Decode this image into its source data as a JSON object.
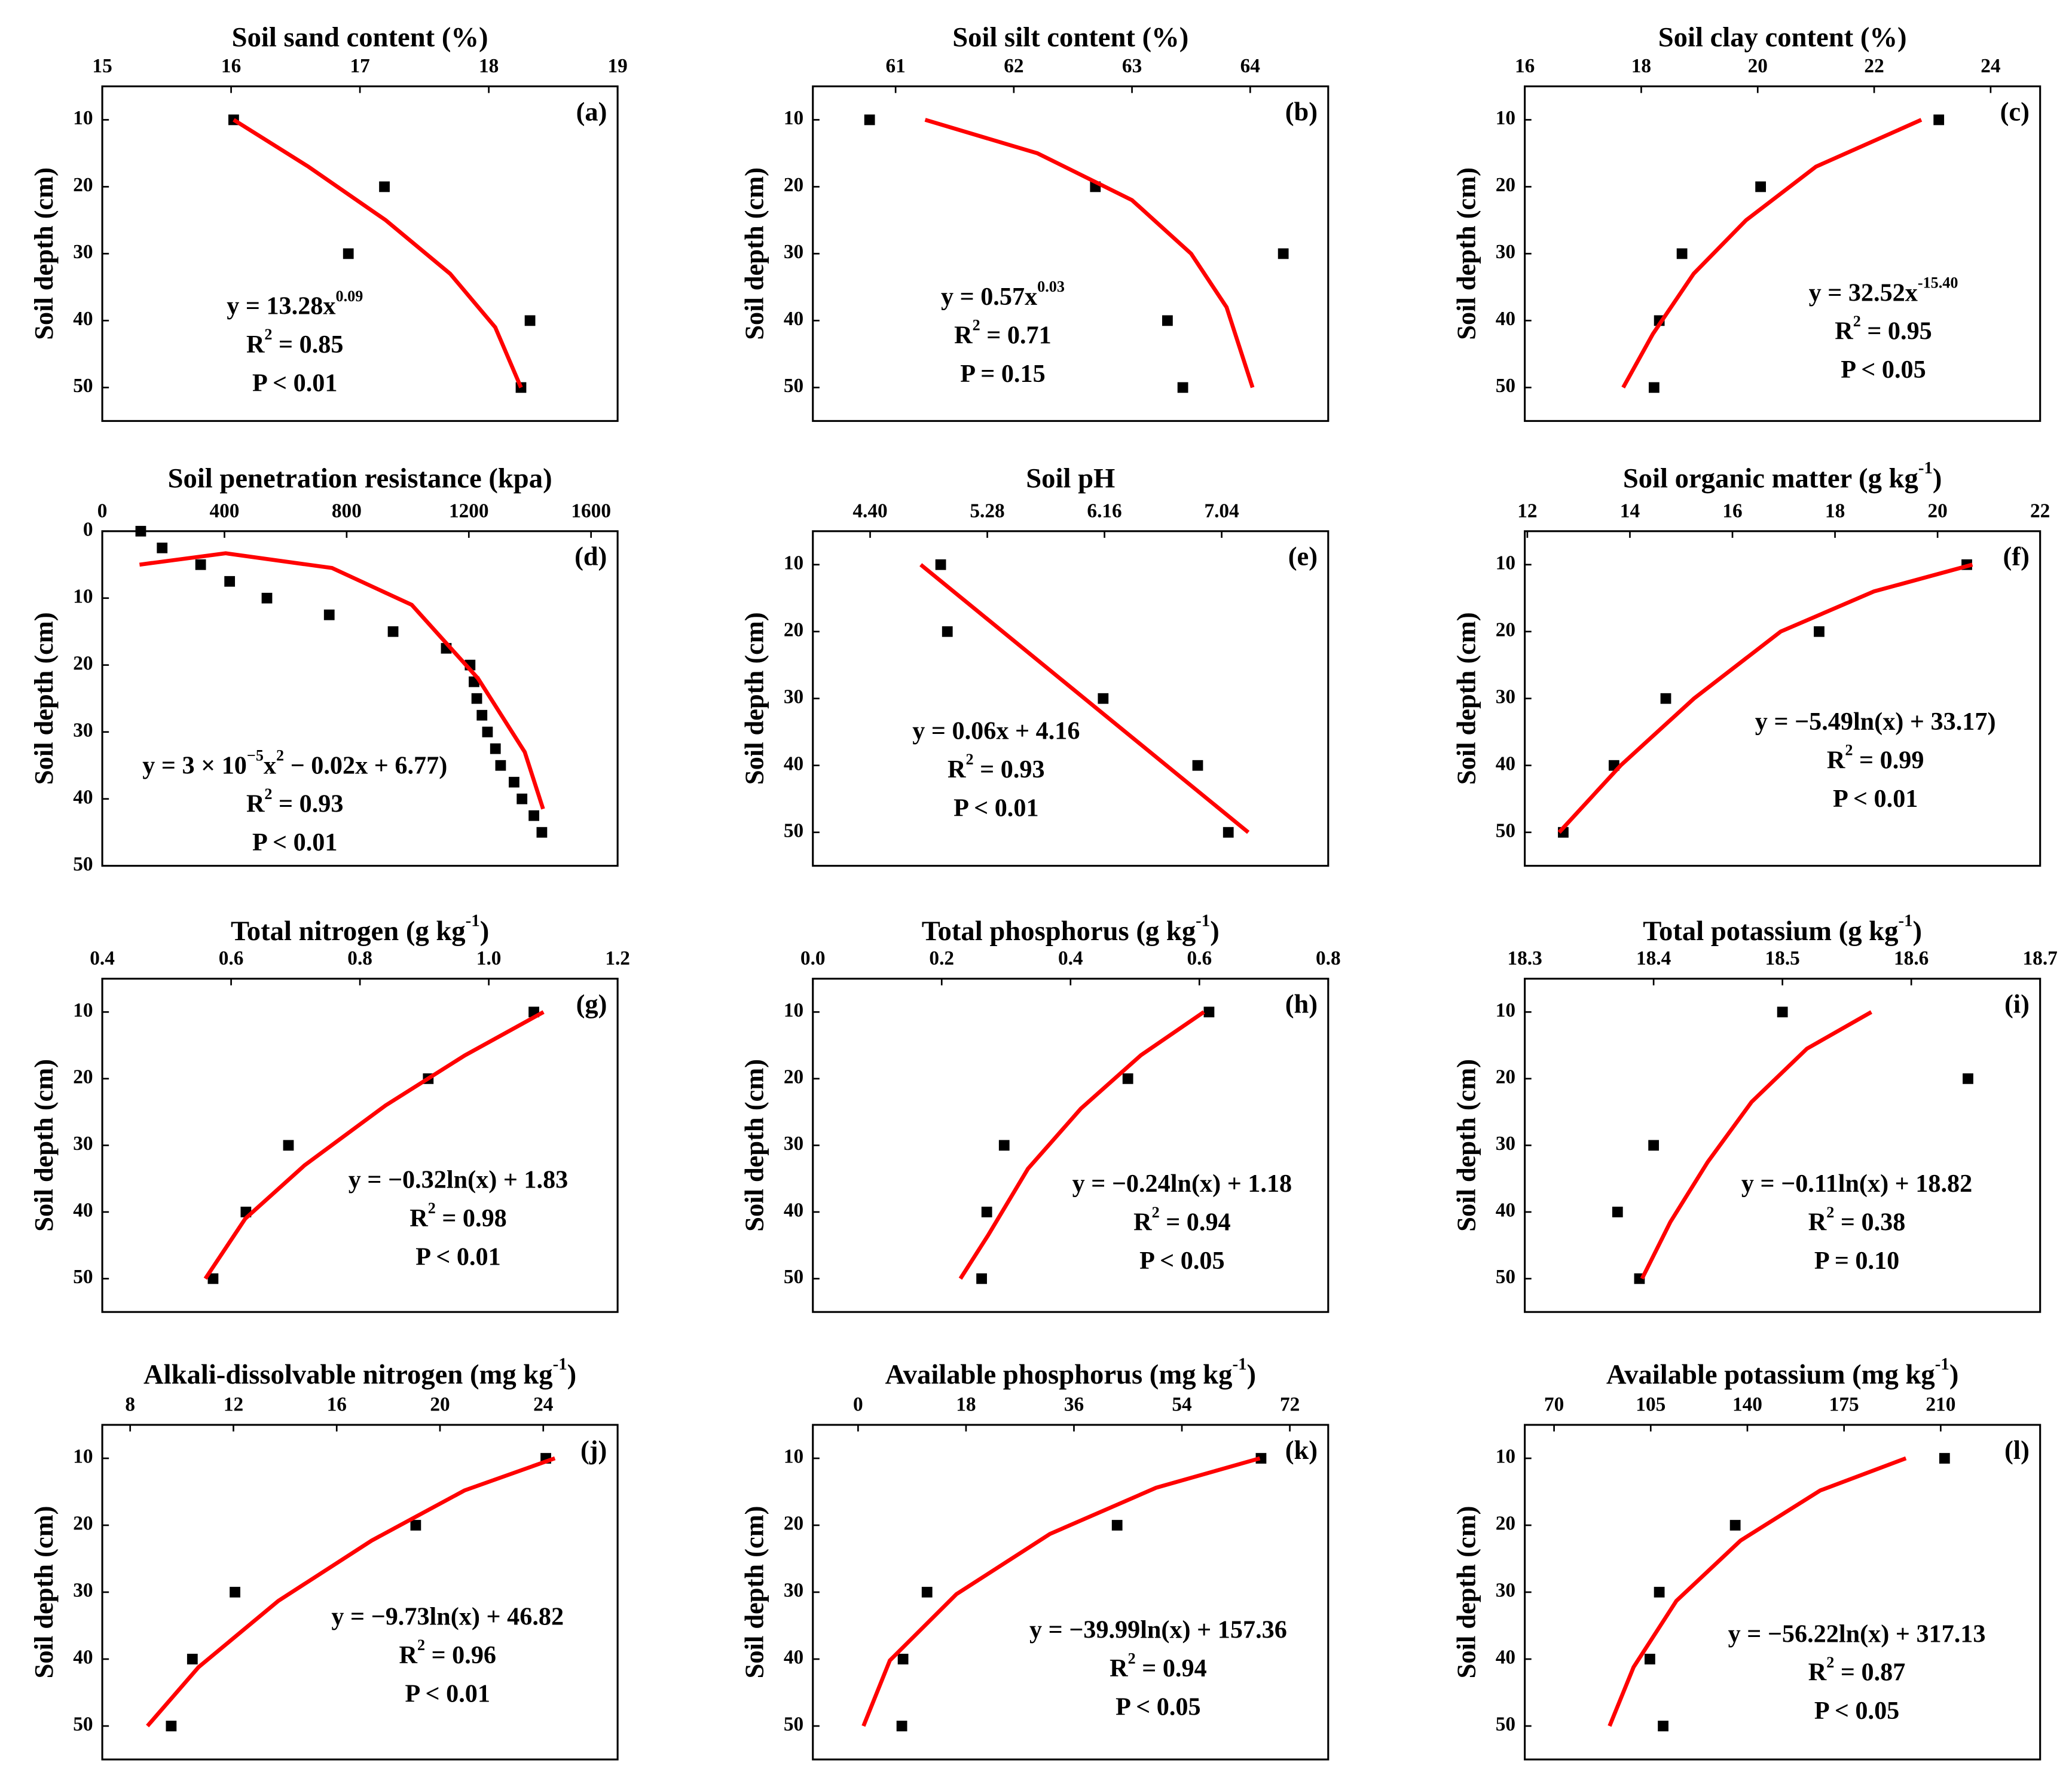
{
  "chart_data": [
    {
      "type": "scatter",
      "title": [
        "Soil sand content (%)"
      ],
      "panel": "(a)",
      "ylabel": "Soil depth (cm)",
      "xlim": [
        15,
        19
      ],
      "xticks": [
        15,
        16,
        17,
        18,
        19
      ],
      "ylim": [
        5,
        55
      ],
      "yticks": [
        10,
        20,
        30,
        40,
        50
      ],
      "yaxis_inverted": true,
      "series": [
        {
          "type": "scatter",
          "marker": "square",
          "color": "#000000",
          "x": [
            16.02,
            17.19,
            16.91,
            18.32,
            18.25
          ],
          "values": [
            10,
            20,
            30,
            40,
            50
          ]
        },
        {
          "type": "line",
          "color": "#ff0000",
          "x": [
            16.02,
            16.6,
            17.2,
            17.7,
            18.05,
            18.25
          ],
          "values": [
            10,
            17,
            25,
            33,
            41,
            50
          ]
        }
      ],
      "annotations": [
        [
          "y = 13.28x",
          {
            "sup": "0.09"
          }
        ],
        [
          "R",
          {
            "sup": "2"
          },
          " = 0.85"
        ],
        [
          "P < 0.01"
        ]
      ]
    },
    {
      "type": "scatter",
      "title": [
        "Soil silt content (%)"
      ],
      "panel": "(b)",
      "ylabel": "Soil depth (cm)",
      "xlim": [
        60.3,
        64.66
      ],
      "xticks": [
        61,
        62,
        63,
        64
      ],
      "ylim": [
        5,
        55
      ],
      "yticks": [
        10,
        20,
        30,
        40,
        50
      ],
      "yaxis_inverted": true,
      "series": [
        {
          "type": "scatter",
          "marker": "square",
          "color": "#000000",
          "x": [
            60.78,
            62.69,
            64.28,
            63.3,
            63.43
          ],
          "values": [
            10,
            20,
            30,
            40,
            50
          ]
        },
        {
          "type": "line",
          "color": "#ff0000",
          "x": [
            61.25,
            62.2,
            63.0,
            63.5,
            63.8,
            64.02
          ],
          "values": [
            10,
            15,
            22,
            30,
            38,
            50
          ]
        }
      ],
      "annotations": [
        [
          "y = 0.57x",
          {
            "sup": "0.03"
          }
        ],
        [
          "R",
          {
            "sup": "2"
          },
          " = 0.71"
        ],
        [
          "P = 0.15"
        ]
      ]
    },
    {
      "type": "scatter",
      "title": [
        "Soil clay content (%)"
      ],
      "panel": "(c)",
      "ylabel": "Soil depth (cm)",
      "xlim": [
        16,
        24.85
      ],
      "xticks": [
        16,
        18,
        20,
        22,
        24
      ],
      "ylim": [
        5,
        55
      ],
      "yticks": [
        10,
        20,
        30,
        40,
        50
      ],
      "yaxis_inverted": true,
      "series": [
        {
          "type": "scatter",
          "marker": "square",
          "color": "#000000",
          "x": [
            23.11,
            20.05,
            18.7,
            18.31,
            18.22
          ],
          "values": [
            10,
            20,
            30,
            40,
            50
          ]
        },
        {
          "type": "line",
          "color": "#ff0000",
          "x": [
            22.81,
            21.0,
            19.8,
            18.9,
            18.2,
            17.69
          ],
          "values": [
            10,
            17,
            25,
            33,
            42,
            50
          ]
        }
      ],
      "annotations": [
        [
          "y = 32.52x",
          {
            "sup": "-15.40"
          }
        ],
        [
          "R",
          {
            "sup": "2"
          },
          " = 0.95"
        ],
        [
          "P < 0.05"
        ]
      ]
    },
    {
      "type": "scatter",
      "title": [
        "Soil penetration resistance (kpa)"
      ],
      "panel": "(d)",
      "ylabel": "Soil depth (cm)",
      "xlim": [
        0,
        1687
      ],
      "xticks": [
        0,
        400,
        800,
        1200,
        1600
      ],
      "ylim": [
        0,
        50
      ],
      "yticks": [
        0,
        10,
        20,
        30,
        40,
        50
      ],
      "yaxis_inverted": true,
      "series": [
        {
          "type": "scatter",
          "marker": "square",
          "color": "#000000",
          "x": [
            126,
            196,
            322,
            417,
            539,
            743,
            952,
            1126,
            1204,
            1217,
            1226,
            1243,
            1261,
            1287,
            1304,
            1348,
            1374,
            1413,
            1439
          ],
          "values": [
            0,
            2.5,
            5,
            7.5,
            10,
            12.5,
            15,
            17.5,
            20,
            22.5,
            25,
            27.5,
            30,
            32.5,
            35,
            37.5,
            40,
            42.5,
            45
          ]
        },
        {
          "type": "line",
          "color": "#ff0000",
          "x": [
            122,
            404,
            752,
            1013,
            1230,
            1383,
            1443
          ],
          "values": [
            5,
            3.3,
            5.5,
            11,
            22,
            33,
            41.5
          ]
        }
      ],
      "annotations": [
        [
          "y = 3 × 10",
          {
            "sup": "−5"
          },
          "x",
          {
            "sup": "2"
          },
          " − 0.02x + 6.77)"
        ],
        [
          "R",
          {
            "sup": "2"
          },
          " = 0.93"
        ],
        [
          "P < 0.01"
        ]
      ]
    },
    {
      "type": "scatter",
      "title": [
        "Soil pH"
      ],
      "panel": "(e)",
      "ylabel": "Soil depth (cm)",
      "xlim": [
        3.97,
        7.84
      ],
      "xticks": [
        {
          "value": 4.4,
          "label": "4.40"
        },
        5.28,
        6.16,
        7.04
      ],
      "ylim": [
        5,
        55
      ],
      "yticks": [
        10,
        20,
        30,
        40,
        50
      ],
      "yaxis_inverted": true,
      "series": [
        {
          "type": "scatter",
          "marker": "square",
          "color": "#000000",
          "x": [
            4.93,
            4.98,
            6.15,
            6.86,
            7.09
          ],
          "values": [
            10,
            20,
            30,
            40,
            50
          ]
        },
        {
          "type": "line",
          "color": "#ff0000",
          "x": [
            4.78,
            7.24
          ],
          "values": [
            10,
            50
          ]
        }
      ],
      "annotations": [
        [
          "y = 0.06x + 4.16"
        ],
        [
          "R",
          {
            "sup": "2"
          },
          " = 0.93"
        ],
        [
          "P < 0.01"
        ]
      ]
    },
    {
      "type": "scatter",
      "title": [
        "Soil organic matter (g kg",
        {
          "sup": "-1"
        },
        ")"
      ],
      "panel": "(f)",
      "ylabel": "Soil depth (cm)",
      "xlim": [
        11.95,
        22
      ],
      "xticks": [
        12,
        14,
        16,
        18,
        20,
        22
      ],
      "ylim": [
        5,
        55
      ],
      "yticks": [
        10,
        20,
        30,
        40,
        50
      ],
      "yaxis_inverted": true,
      "series": [
        {
          "type": "scatter",
          "marker": "square",
          "color": "#000000",
          "x": [
            20.57,
            17.69,
            14.7,
            13.69,
            12.7
          ],
          "values": [
            10,
            20,
            30,
            40,
            50
          ]
        },
        {
          "type": "line",
          "color": "#ff0000",
          "x": [
            20.68,
            18.76,
            16.94,
            15.25,
            13.82,
            12.62
          ],
          "values": [
            10,
            14,
            20,
            30,
            40,
            50
          ]
        }
      ],
      "annotations": [
        [
          "y = −5.49ln(x) + 33.17)"
        ],
        [
          "R",
          {
            "sup": "2"
          },
          " = 0.99"
        ],
        [
          "P < 0.01"
        ]
      ]
    },
    {
      "type": "scatter",
      "title": [
        "Total nitrogen (g kg",
        {
          "sup": "-1"
        },
        ")"
      ],
      "panel": "(g)",
      "ylabel": "Soil depth (cm)",
      "xlim": [
        0.4,
        1.2
      ],
      "xticks": [
        0.4,
        0.6,
        0.8,
        {
          "value": 1,
          "label": "1.0"
        },
        1.2
      ],
      "ylim": [
        5,
        55
      ],
      "yticks": [
        10,
        20,
        30,
        40,
        50
      ],
      "yaxis_inverted": true,
      "series": [
        {
          "type": "scatter",
          "marker": "square",
          "color": "#000000",
          "x": [
            1.07,
            0.906,
            0.689,
            0.623,
            0.572
          ],
          "values": [
            10,
            20,
            30,
            40,
            50
          ]
        },
        {
          "type": "line",
          "color": "#ff0000",
          "x": [
            1.085,
            0.963,
            0.84,
            0.714,
            0.622,
            0.56
          ],
          "values": [
            10,
            16.5,
            24,
            33,
            41,
            50
          ]
        }
      ],
      "annotations": [
        [
          "y = −0.32ln(x) + 1.83"
        ],
        [
          "R",
          {
            "sup": "2"
          },
          " = 0.98"
        ],
        [
          "P < 0.01"
        ]
      ]
    },
    {
      "type": "scatter",
      "title": [
        "Total phosphorus (g kg",
        {
          "sup": "-1"
        },
        ")"
      ],
      "panel": "(h)",
      "ylabel": "Soil depth (cm)",
      "xlim": [
        0,
        0.8
      ],
      "xticks": [
        {
          "value": 0,
          "label": "0.0"
        },
        0.2,
        0.4,
        0.6,
        0.8
      ],
      "ylim": [
        5,
        55
      ],
      "yticks": [
        10,
        20,
        30,
        40,
        50
      ],
      "yaxis_inverted": true,
      "series": [
        {
          "type": "scatter",
          "marker": "square",
          "color": "#000000",
          "x": [
            0.615,
            0.489,
            0.297,
            0.27,
            0.262
          ],
          "values": [
            10,
            20,
            30,
            40,
            50
          ]
        },
        {
          "type": "line",
          "color": "#ff0000",
          "x": [
            0.607,
            0.509,
            0.416,
            0.334,
            0.272,
            0.229
          ],
          "values": [
            10,
            16.5,
            24.5,
            33.5,
            43.5,
            50
          ]
        }
      ],
      "annotations": [
        [
          "y = −0.24ln(x) + 1.18"
        ],
        [
          "R",
          {
            "sup": "2"
          },
          " = 0.94"
        ],
        [
          "P < 0.05"
        ]
      ]
    },
    {
      "type": "scatter",
      "title": [
        "Total potassium (g kg",
        {
          "sup": "-1"
        },
        ")"
      ],
      "panel": "(i)",
      "ylabel": "Soil depth (cm)",
      "xlim": [
        18.3,
        18.7
      ],
      "xticks": [
        18.3,
        18.4,
        18.5,
        18.6,
        18.7
      ],
      "ylim": [
        5,
        55
      ],
      "yticks": [
        10,
        20,
        30,
        40,
        50
      ],
      "yaxis_inverted": true,
      "series": [
        {
          "type": "scatter",
          "marker": "square",
          "color": "#000000",
          "x": [
            18.5,
            18.644,
            18.4,
            18.372,
            18.389
          ],
          "values": [
            10,
            20,
            30,
            40,
            50
          ]
        },
        {
          "type": "line",
          "color": "#ff0000",
          "x": [
            18.569,
            18.519,
            18.476,
            18.442,
            18.413,
            18.391
          ],
          "values": [
            10,
            15.5,
            23.5,
            32.5,
            41.5,
            50
          ]
        }
      ],
      "annotations": [
        [
          "y = −0.11ln(x) + 18.82"
        ],
        [
          "R",
          {
            "sup": "2"
          },
          " = 0.38"
        ],
        [
          "P = 0.10"
        ]
      ]
    },
    {
      "type": "scatter",
      "title": [
        "Alkali-dissolvable nitrogen (mg kg",
        {
          "sup": "-1"
        },
        ")"
      ],
      "panel": "(j)",
      "ylabel": "Soil depth (cm)",
      "xlim": [
        6.92,
        26.88
      ],
      "xticks": [
        8,
        12,
        16,
        20,
        24
      ],
      "ylim": [
        5,
        55
      ],
      "yticks": [
        10,
        20,
        30,
        40,
        50
      ],
      "yaxis_inverted": true,
      "series": [
        {
          "type": "scatter",
          "marker": "square",
          "color": "#000000",
          "x": [
            24.1,
            19.06,
            12.06,
            10.41,
            9.59
          ],
          "values": [
            10,
            20,
            30,
            40,
            50
          ]
        },
        {
          "type": "line",
          "color": "#ff0000",
          "x": [
            24.45,
            20.95,
            17.35,
            13.74,
            10.65,
            8.67
          ],
          "values": [
            10,
            14.8,
            22.3,
            31.3,
            41.2,
            50
          ]
        }
      ],
      "annotations": [
        [
          "y = −9.73ln(x) + 46.82"
        ],
        [
          "R",
          {
            "sup": "2"
          },
          " = 0.96"
        ],
        [
          "P < 0.01"
        ]
      ]
    },
    {
      "type": "scatter",
      "title": [
        "Available phosphorus (mg kg",
        {
          "sup": "-1"
        },
        ")"
      ],
      "panel": "(k)",
      "ylabel": "Soil depth (cm)",
      "xlim": [
        -7.54,
        78.4
      ],
      "xticks": [
        0,
        18,
        36,
        54,
        72
      ],
      "ylim": [
        5,
        55
      ],
      "yticks": [
        10,
        20,
        30,
        40,
        50
      ],
      "yaxis_inverted": true,
      "series": [
        {
          "type": "scatter",
          "marker": "square",
          "color": "#000000",
          "x": [
            67.2,
            43.2,
            11.5,
            7.5,
            7.3
          ],
          "values": [
            10,
            20,
            30,
            40,
            50
          ]
        },
        {
          "type": "line",
          "color": "#ff0000",
          "x": [
            67,
            49.7,
            32,
            16.4,
            5.3,
            0.9
          ],
          "values": [
            10,
            14.4,
            21.3,
            30.3,
            40.2,
            50
          ]
        }
      ],
      "annotations": [
        [
          "y = −39.99ln(x) + 157.36"
        ],
        [
          "R",
          {
            "sup": "2"
          },
          " = 0.94"
        ],
        [
          "P < 0.05"
        ]
      ]
    },
    {
      "type": "scatter",
      "title": [
        "Available potassium (mg kg",
        {
          "sup": "-1"
        },
        ")"
      ],
      "panel": "(l)",
      "ylabel": "Soil depth (cm)",
      "xlim": [
        59.4,
        246
      ],
      "xticks": [
        70,
        105,
        140,
        175,
        210
      ],
      "ylim": [
        5,
        55
      ],
      "yticks": [
        10,
        20,
        30,
        40,
        50
      ],
      "yaxis_inverted": true,
      "series": [
        {
          "type": "scatter",
          "marker": "square",
          "color": "#000000",
          "x": [
            211.4,
            135.6,
            108.1,
            104.7,
            109.5
          ],
          "values": [
            10,
            20,
            30,
            40,
            50
          ]
        },
        {
          "type": "line",
          "color": "#ff0000",
          "x": [
            197.4,
            166.4,
            137.5,
            114.3,
            98.8,
            90.1
          ],
          "values": [
            10,
            14.8,
            22.3,
            31.3,
            41.2,
            50
          ]
        }
      ],
      "annotations": [
        [
          "y = −56.22ln(x) + 317.13"
        ],
        [
          "R",
          {
            "sup": "2"
          },
          " = 0.87"
        ],
        [
          "P < 0.05"
        ]
      ]
    }
  ]
}
